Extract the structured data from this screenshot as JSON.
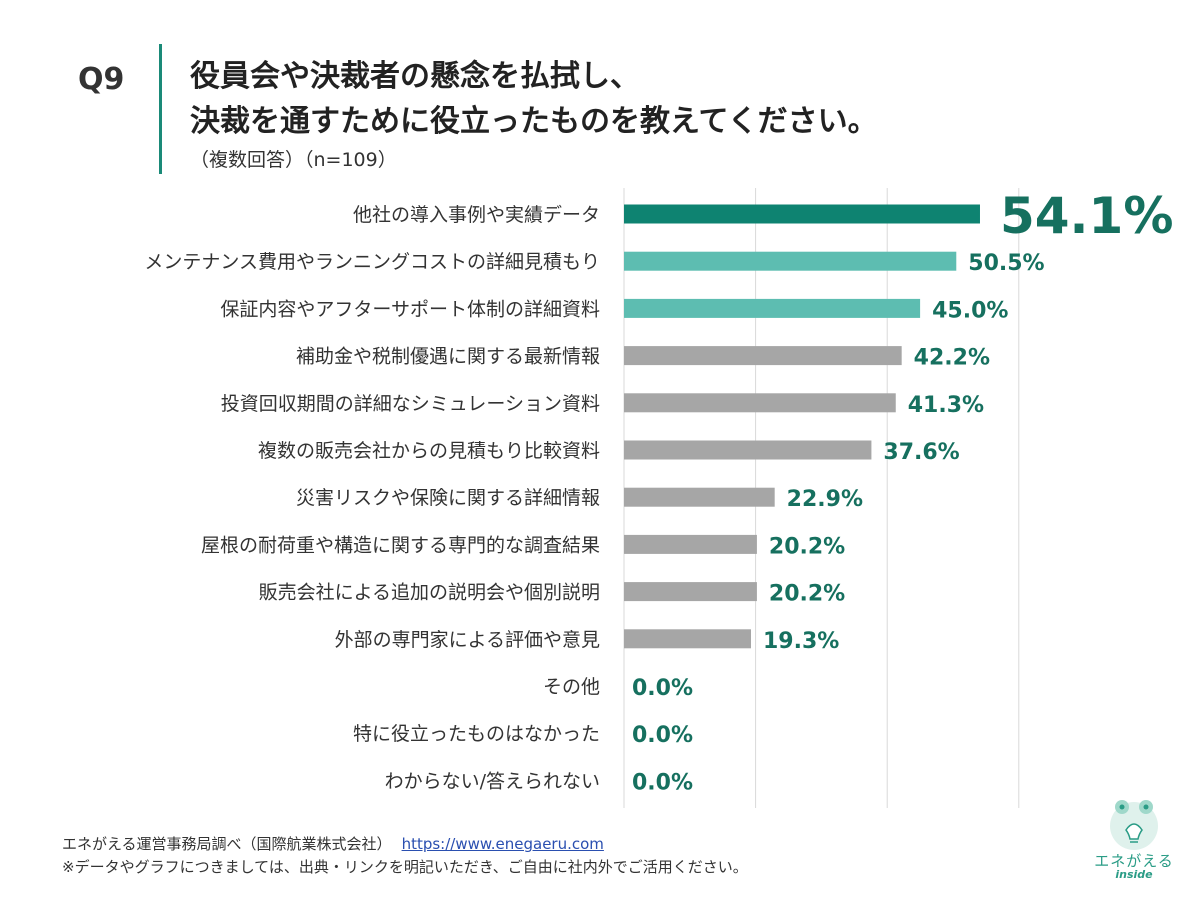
{
  "header": {
    "qnum": "Q9",
    "title_line1": "役員会や決裁者の懸念を払拭し、",
    "title_line2": "決裁を通すために役立ったものを教えてください。",
    "subtitle": "（複数回答）（n=109）"
  },
  "chart_data": {
    "type": "bar",
    "orientation": "horizontal",
    "title": "役員会や決裁者の懸念を払拭し、決裁を通すために役立ったものを教えてください。",
    "categories": [
      "他社の導入事例や実績データ",
      "メンテナンス費用やランニングコストの詳細見積もり",
      "保証内容やアフターサポート体制の詳細資料",
      "補助金や税制優遇に関する最新情報",
      "投資回収期間の詳細なシミュレーション資料",
      "複数の販売会社からの見積もり比較資料",
      "災害リスクや保険に関する詳細情報",
      "屋根の耐荷重や構造に関する専門的な調査結果",
      "販売会社による追加の説明会や個別説明",
      "外部の専門家による評価や意見",
      "その他",
      "特に役立ったものはなかった",
      "わからない/答えられない"
    ],
    "values": [
      54.1,
      50.5,
      45.0,
      42.2,
      41.3,
      37.6,
      22.9,
      20.2,
      20.2,
      19.3,
      0.0,
      0.0,
      0.0
    ],
    "value_labels": [
      "54.1%",
      "50.5%",
      "45.0%",
      "42.2%",
      "41.3%",
      "37.6%",
      "22.9%",
      "20.2%",
      "20.2%",
      "19.3%",
      "0.0%",
      "0.0%",
      "0.0%"
    ],
    "unit": "%",
    "xlim": [
      0,
      60
    ],
    "grid": true,
    "colors": {
      "top": "#0e8371",
      "second_third": "#5dbdb1",
      "rest": "#a6a6a6",
      "label": "#16705f"
    }
  },
  "footer": {
    "source_text": "エネがえる運営事務局調べ（国際航業株式会社）",
    "source_url": "https://www.enegaeru.com",
    "note": "※データやグラフにつきましては、出典・リンクを明記いただき、ご自由に社内外でご活用ください。"
  },
  "logo": {
    "name": "エネがえる",
    "sub": "inside",
    "icon": "frog-lightbulb-icon"
  }
}
